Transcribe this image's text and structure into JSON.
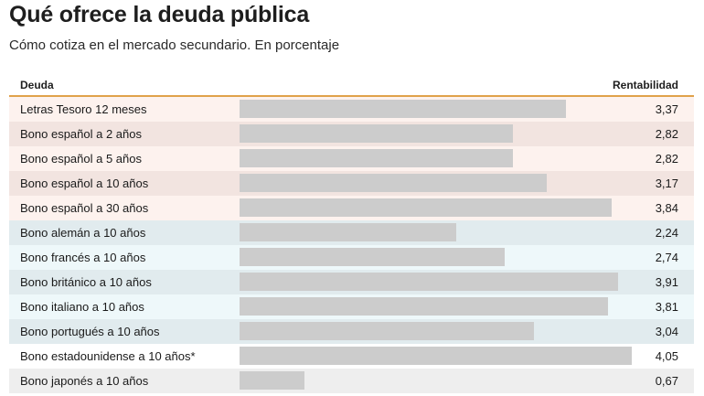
{
  "title": "Qué ofrece la deuda pública",
  "subtitle": "Cómo cotiza en el mercado secundario. En porcentaje",
  "colors": {
    "header_rule": "#e0a24a",
    "bar": "#cccccc",
    "row_spain_light": "#fdf2ee",
    "row_spain_dark": "#f2e4e0",
    "row_eu_light": "#eef8fa",
    "row_eu_dark": "#e1ebee",
    "row_other_light": "#ffffff",
    "row_other_dark": "#eeeeee"
  },
  "chart_data": {
    "type": "table",
    "columns": [
      "Deuda",
      "Rentabilidad"
    ],
    "max_value": 4.25,
    "rows": [
      {
        "label": "Letras Tesoro 12 meses",
        "value": 3.37,
        "display": "3,37",
        "group": "spain_light"
      },
      {
        "label": "Bono español a 2 años",
        "value": 2.82,
        "display": "2,82",
        "group": "spain_dark"
      },
      {
        "label": "Bono español a 5 años",
        "value": 2.82,
        "display": "2,82",
        "group": "spain_light"
      },
      {
        "label": "Bono español a 10 años",
        "value": 3.17,
        "display": "3,17",
        "group": "spain_dark"
      },
      {
        "label": "Bono español a 30 años",
        "value": 3.84,
        "display": "3,84",
        "group": "spain_light"
      },
      {
        "label": "Bono alemán a 10 años",
        "value": 2.24,
        "display": "2,24",
        "group": "eu_dark"
      },
      {
        "label": "Bono francés a 10 años",
        "value": 2.74,
        "display": "2,74",
        "group": "eu_light"
      },
      {
        "label": "Bono británico a 10 años",
        "value": 3.91,
        "display": "3,91",
        "group": "eu_dark"
      },
      {
        "label": "Bono italiano a 10 años",
        "value": 3.81,
        "display": "3,81",
        "group": "eu_light"
      },
      {
        "label": "Bono portugués a 10 años",
        "value": 3.04,
        "display": "3,04",
        "group": "eu_dark"
      },
      {
        "label": "Bono estadounidense a 10 años*",
        "value": 4.05,
        "display": "4,05",
        "group": "other_light"
      },
      {
        "label": "Bono japonés a 10 años",
        "value": 0.67,
        "display": "0,67",
        "group": "other_dark"
      }
    ]
  }
}
